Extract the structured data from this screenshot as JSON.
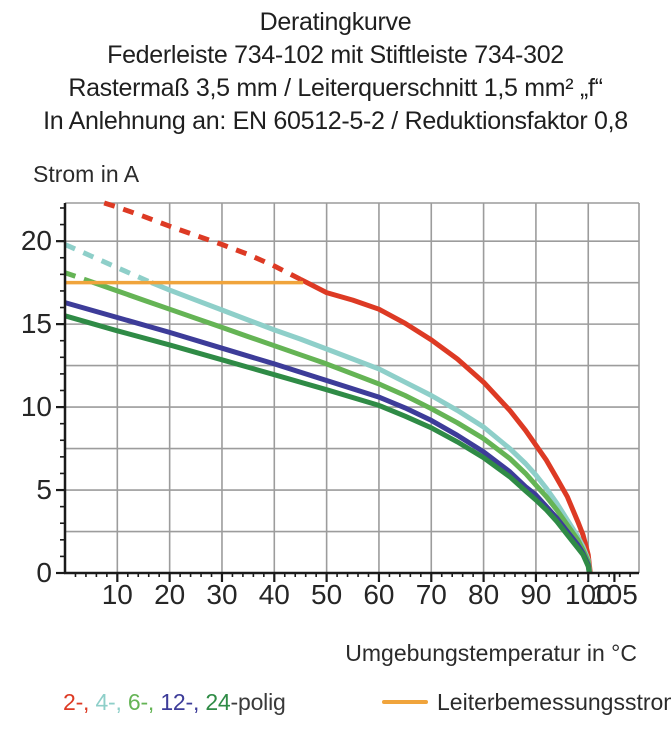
{
  "title": {
    "lines": [
      "Deratingkurve",
      "Federleiste 734-102 mit Stiftleiste 734-302",
      "Rastermaß 3,5 mm / Leiterquerschnitt 1,5 mm² „f“",
      "In Anlehnung an: EN 60512-5-2 / Reduktionsfaktor 0,8"
    ]
  },
  "chart_data": {
    "type": "line",
    "title": "Deratingkurve",
    "xlabel": "Umgebungstemperatur in °C",
    "ylabel": "Strom in A",
    "xlim": [
      0,
      109.7
    ],
    "ylim": [
      0,
      22.3
    ],
    "x_major_ticks": [
      10,
      20,
      30,
      40,
      50,
      60,
      70,
      80,
      90,
      100,
      105
    ],
    "x_minor_step": 2,
    "y_major_ticks": [
      0,
      5,
      10,
      15,
      20
    ],
    "y_minor_step": 1,
    "grid": {
      "x_lines": [
        10,
        20,
        30,
        40,
        50,
        60,
        70,
        80,
        90,
        100
      ],
      "y_lines": [
        2.5,
        5,
        7.5,
        10,
        12.5,
        15,
        17.5,
        20
      ],
      "color": "#9c9c9c"
    },
    "axis_color": "#1a1a1a",
    "reference_line": {
      "label": "Leiterbemessungsstrom",
      "current_a": 17.5,
      "x_start": 0,
      "x_end": 45.5,
      "color": "#f0a43c"
    },
    "series": [
      {
        "name": "2-polig",
        "color": "#dd3a24",
        "width": 5,
        "dash_until_x": 45,
        "points": [
          [
            7.5,
            22.3
          ],
          [
            10,
            22.05
          ],
          [
            15,
            21.5
          ],
          [
            20,
            20.9
          ],
          [
            25,
            20.35
          ],
          [
            30,
            19.8
          ],
          [
            35,
            19.2
          ],
          [
            40,
            18.5
          ],
          [
            45,
            17.7
          ],
          [
            50,
            16.9
          ],
          [
            55,
            16.45
          ],
          [
            60,
            15.9
          ],
          [
            65,
            15.05
          ],
          [
            70,
            14.05
          ],
          [
            75,
            12.9
          ],
          [
            80,
            11.5
          ],
          [
            85,
            9.8
          ],
          [
            88,
            8.6
          ],
          [
            90,
            7.7
          ],
          [
            92,
            6.8
          ],
          [
            94,
            5.7
          ],
          [
            96,
            4.6
          ],
          [
            98,
            3.1
          ],
          [
            99,
            2.3
          ],
          [
            100,
            1.1
          ],
          [
            100.4,
            0
          ]
        ]
      },
      {
        "name": "4-polig",
        "color": "#8ecfc9",
        "width": 5,
        "dash_until_x": 16.5,
        "points": [
          [
            0,
            19.8
          ],
          [
            5,
            19.1
          ],
          [
            10,
            18.4
          ],
          [
            16.5,
            17.5
          ],
          [
            20,
            17.05
          ],
          [
            25,
            16.45
          ],
          [
            30,
            15.85
          ],
          [
            35,
            15.25
          ],
          [
            40,
            14.65
          ],
          [
            45,
            14.1
          ],
          [
            50,
            13.5
          ],
          [
            55,
            12.9
          ],
          [
            60,
            12.3
          ],
          [
            65,
            11.5
          ],
          [
            70,
            10.7
          ],
          [
            75,
            9.8
          ],
          [
            80,
            8.8
          ],
          [
            85,
            7.5
          ],
          [
            88,
            6.6
          ],
          [
            90,
            5.9
          ],
          [
            92,
            5.1
          ],
          [
            94,
            4.2
          ],
          [
            96,
            3.2
          ],
          [
            98,
            2.2
          ],
          [
            99,
            1.6
          ],
          [
            100,
            0.8
          ],
          [
            100.3,
            0
          ]
        ]
      },
      {
        "name": "6-polig",
        "color": "#65b455",
        "width": 5,
        "dash_until_x": 5.5,
        "points": [
          [
            0,
            18.1
          ],
          [
            5.5,
            17.5
          ],
          [
            10,
            17.0
          ],
          [
            15,
            16.45
          ],
          [
            20,
            15.9
          ],
          [
            25,
            15.35
          ],
          [
            30,
            14.8
          ],
          [
            35,
            14.25
          ],
          [
            40,
            13.7
          ],
          [
            45,
            13.15
          ],
          [
            50,
            12.6
          ],
          [
            55,
            12.0
          ],
          [
            60,
            11.4
          ],
          [
            65,
            10.7
          ],
          [
            70,
            9.9
          ],
          [
            75,
            9.05
          ],
          [
            80,
            8.1
          ],
          [
            85,
            6.9
          ],
          [
            88,
            6.0
          ],
          [
            90,
            5.3
          ],
          [
            92,
            4.6
          ],
          [
            94,
            3.8
          ],
          [
            96,
            2.9
          ],
          [
            98,
            2.0
          ],
          [
            99,
            1.4
          ],
          [
            100,
            0.7
          ],
          [
            100.3,
            0
          ]
        ]
      },
      {
        "name": "12-polig",
        "color": "#3d3c99",
        "width": 5,
        "dash_until_x": -1,
        "points": [
          [
            0,
            16.3
          ],
          [
            10,
            15.4
          ],
          [
            20,
            14.5
          ],
          [
            30,
            13.55
          ],
          [
            40,
            12.6
          ],
          [
            50,
            11.6
          ],
          [
            60,
            10.6
          ],
          [
            65,
            9.95
          ],
          [
            70,
            9.2
          ],
          [
            75,
            8.3
          ],
          [
            80,
            7.3
          ],
          [
            85,
            6.1
          ],
          [
            88,
            5.2
          ],
          [
            90,
            4.7
          ],
          [
            92,
            4.0
          ],
          [
            94,
            3.3
          ],
          [
            96,
            2.5
          ],
          [
            98,
            1.7
          ],
          [
            99,
            1.2
          ],
          [
            100,
            0.5
          ],
          [
            100.2,
            0
          ]
        ]
      },
      {
        "name": "24-polig",
        "color": "#2f8b46",
        "width": 5,
        "dash_until_x": -1,
        "points": [
          [
            0,
            15.5
          ],
          [
            10,
            14.6
          ],
          [
            20,
            13.75
          ],
          [
            30,
            12.85
          ],
          [
            40,
            11.95
          ],
          [
            50,
            11.05
          ],
          [
            60,
            10.1
          ],
          [
            65,
            9.45
          ],
          [
            70,
            8.75
          ],
          [
            75,
            7.9
          ],
          [
            80,
            6.95
          ],
          [
            85,
            5.8
          ],
          [
            88,
            4.95
          ],
          [
            90,
            4.4
          ],
          [
            92,
            3.8
          ],
          [
            94,
            3.1
          ],
          [
            96,
            2.3
          ],
          [
            98,
            1.5
          ],
          [
            99,
            1.1
          ],
          [
            100,
            0.4
          ],
          [
            100.2,
            0
          ]
        ]
      }
    ],
    "legend": {
      "parts": [
        {
          "text": "2-, ",
          "color": "#dd3a24"
        },
        {
          "text": "4-, ",
          "color": "#8ecfc9"
        },
        {
          "text": "6-, ",
          "color": "#65b455"
        },
        {
          "text": "12-, ",
          "color": "#3d3c99"
        },
        {
          "text": "24",
          "color": "#2f8b46"
        },
        {
          "text": "-polig",
          "color": "#3a3a3a"
        }
      ],
      "reference_label": "Leiterbemessungsstrom"
    }
  }
}
